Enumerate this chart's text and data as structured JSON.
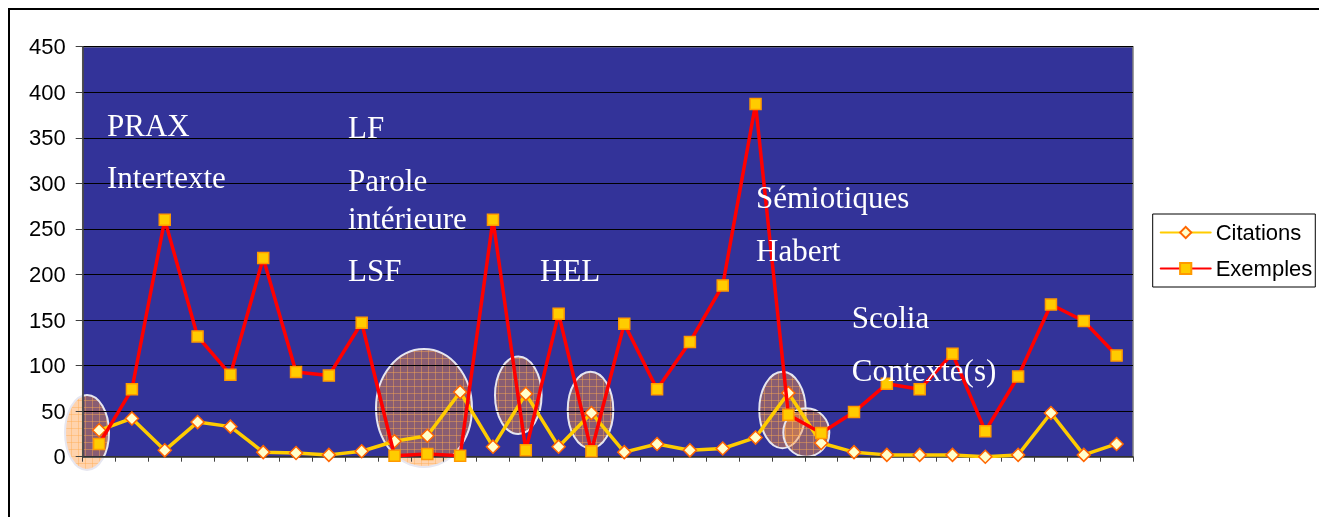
{
  "chart_data": {
    "type": "line",
    "categories": [
      null,
      null,
      null,
      null,
      null,
      null,
      null,
      null,
      null,
      null,
      null,
      null,
      null,
      null,
      null,
      null,
      null,
      null,
      null,
      null,
      null,
      null,
      null,
      null,
      null,
      null,
      null,
      null,
      null,
      null,
      null,
      null
    ],
    "series": [
      {
        "name": "Citations",
        "color": "#ffcc00",
        "marker": "diamond",
        "values": [
          29,
          42,
          7,
          38,
          33,
          5,
          4,
          2,
          6,
          17,
          23,
          71,
          11,
          69,
          11,
          48,
          5,
          14,
          7,
          9,
          21,
          70,
          15,
          5,
          2,
          2,
          2,
          0,
          2,
          48,
          2,
          14
        ]
      },
      {
        "name": "Exemples",
        "color": "#ff0000",
        "marker": "square",
        "values": [
          14,
          74,
          260,
          132,
          90,
          218,
          93,
          89,
          147,
          1,
          3,
          1,
          260,
          7,
          157,
          6,
          146,
          74,
          126,
          188,
          387,
          46,
          26,
          49,
          80,
          74,
          113,
          28,
          88,
          167,
          149,
          111
        ]
      }
    ],
    "ylim": [
      0,
      450
    ],
    "yticks": [
      0,
      50,
      100,
      150,
      200,
      250,
      300,
      350,
      400,
      450
    ],
    "grid": "y",
    "legend": "right",
    "tick_labels": "y",
    "annotations": [
      "PRAX",
      "Intertexte",
      "LF",
      "Parole intérieure",
      "LSF",
      "HEL",
      "Sémiotiques",
      "Habert",
      "Scolia",
      "Contexte(s)"
    ]
  }
}
